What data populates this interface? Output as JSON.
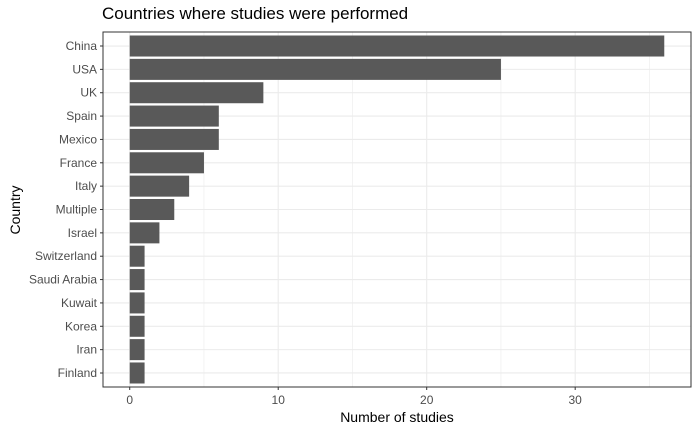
{
  "chart_data": {
    "type": "bar",
    "orientation": "horizontal",
    "title": "Countries where studies were performed",
    "xlabel": "Number of studies",
    "ylabel": "Country",
    "categories": [
      "China",
      "USA",
      "UK",
      "Spain",
      "Mexico",
      "France",
      "Italy",
      "Multiple",
      "Israel",
      "Switzerland",
      "Saudi Arabia",
      "Kuwait",
      "Korea",
      "Iran",
      "Finland"
    ],
    "values": [
      36,
      25,
      9,
      6,
      6,
      5,
      4,
      3,
      2,
      1,
      1,
      1,
      1,
      1,
      1
    ],
    "xlim": [
      -1.8,
      37.8
    ],
    "x_ticks": [
      0,
      10,
      20,
      30
    ],
    "grid": true,
    "legend": "none",
    "bar_color": "#595959",
    "grid_color": "#ebebeb",
    "panel_border_color": "#333333"
  }
}
